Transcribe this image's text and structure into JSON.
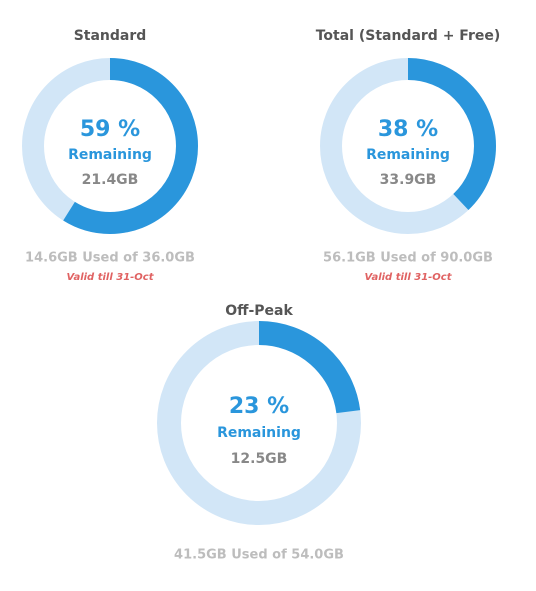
{
  "gauges": [
    {
      "title": "Standard",
      "percent": {
        "value": 59,
        "label": "59 %"
      },
      "remaining_label": "Remaining",
      "remaining": "21.4GB",
      "usage": "14.6GB Used of 36.0GB",
      "validity": "Valid till 31-Oct"
    },
    {
      "title": "Total (Standard + Free)",
      "percent": {
        "value": 38,
        "label": "38 %"
      },
      "remaining_label": "Remaining",
      "remaining": "33.9GB",
      "usage": "56.1GB Used of 90.0GB",
      "validity": "Valid till 31-Oct"
    },
    {
      "title": "Off-Peak",
      "percent": {
        "value": 23,
        "label": "23 %"
      },
      "remaining_label": "Remaining",
      "remaining": "12.5GB",
      "usage": "41.5GB Used of 54.0GB"
    }
  ]
}
